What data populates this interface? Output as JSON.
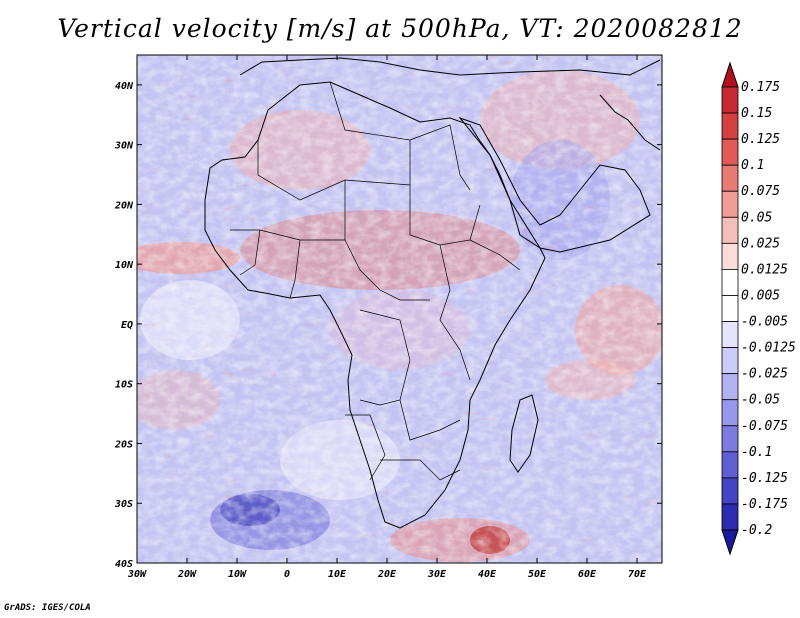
{
  "title": "Vertical velocity [m/s] at 500hPa, VT: 2020082812",
  "credit": "GrADS: IGES/COLA",
  "map": {
    "region": "Africa",
    "variable": "vertical velocity",
    "level": "500hPa",
    "lon_range": [
      -30,
      75
    ],
    "lat_range": [
      -40,
      45
    ],
    "lat_labels": [
      "40N",
      "30N",
      "20N",
      "10N",
      "EQ",
      "10S",
      "20S",
      "30S",
      "40S"
    ],
    "lat_values": [
      40,
      30,
      20,
      10,
      0,
      -10,
      -20,
      -30,
      -40
    ],
    "lon_labels": [
      "30W",
      "20W",
      "10W",
      "0",
      "10E",
      "20E",
      "30E",
      "40E",
      "50E",
      "60E",
      "70E"
    ],
    "lon_values": [
      -30,
      -20,
      -10,
      0,
      10,
      20,
      30,
      40,
      50,
      60,
      70
    ]
  },
  "colorbar": {
    "levels": [
      "0.175",
      "0.15",
      "0.125",
      "0.1",
      "0.075",
      "0.05",
      "0.025",
      "0.0125",
      "0.005",
      "-0.005",
      "-0.0125",
      "-0.025",
      "-0.05",
      "-0.075",
      "-0.1",
      "-0.125",
      "-0.175",
      "-0.2"
    ],
    "colors": [
      "#b01020",
      "#c42a30",
      "#d44040",
      "#e05a58",
      "#e87a74",
      "#f09c94",
      "#f6beb8",
      "#fadcd8",
      "#ffffff",
      "#ffffff",
      "#e4e4fc",
      "#ccccf8",
      "#b2b2f2",
      "#9898ea",
      "#7c7ce0",
      "#6060d4",
      "#4444c4",
      "#2c2cb0",
      "#1a1a9c"
    ]
  }
}
